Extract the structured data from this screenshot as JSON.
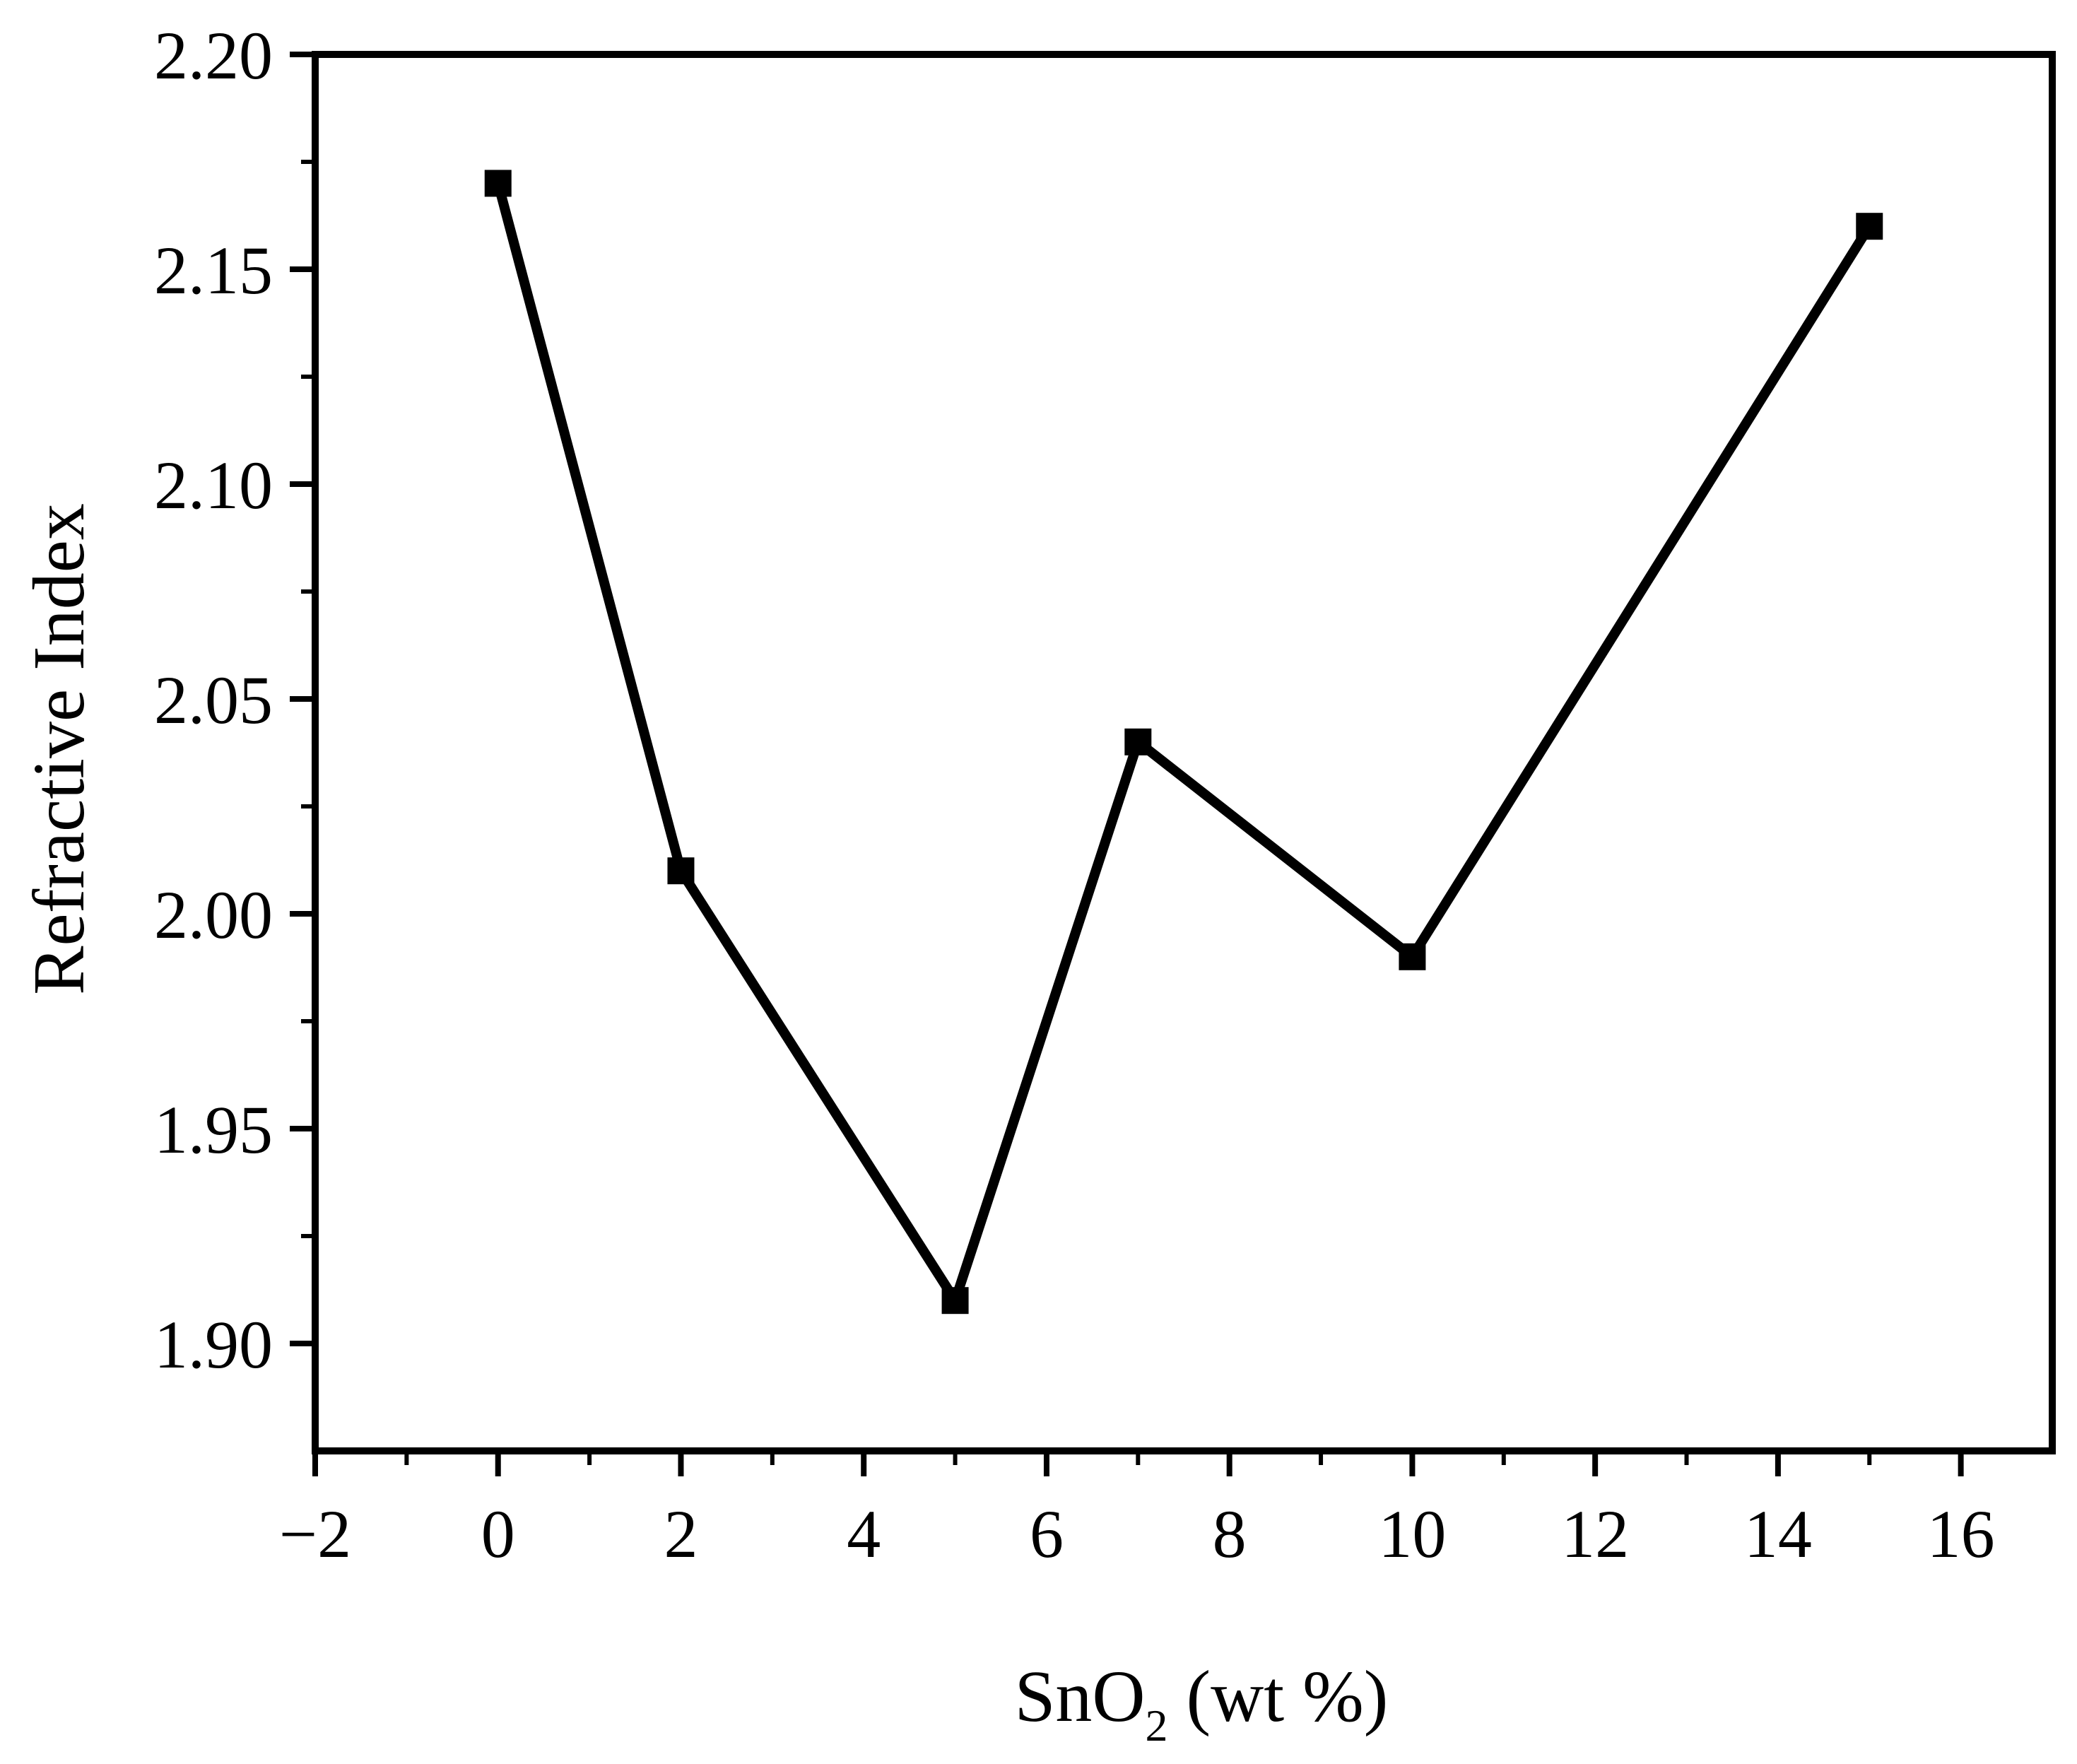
{
  "chart_data": {
    "type": "line",
    "title": "",
    "xlabel": "SnO2 (wt %)",
    "xlabel_parts": {
      "main": "SnO",
      "subscript": "2",
      "rest": " (wt %)"
    },
    "ylabel": "Refractive Index",
    "xlim": [
      -2,
      17
    ],
    "ylim": [
      1.875,
      2.2
    ],
    "x_ticks": [
      -2,
      0,
      2,
      4,
      6,
      8,
      10,
      12,
      14,
      16
    ],
    "x_tick_labels": [
      "−2",
      "0",
      "2",
      "4",
      "6",
      "8",
      "10",
      "12",
      "14",
      "16"
    ],
    "y_ticks": [
      1.9,
      1.95,
      2.0,
      2.05,
      2.1,
      2.15,
      2.2
    ],
    "y_tick_labels": [
      "1.90",
      "1.95",
      "2.00",
      "2.05",
      "2.10",
      "2.15",
      "2.20"
    ],
    "grid": false,
    "series": [
      {
        "x": [
          0,
          2,
          5,
          7,
          10,
          15
        ],
        "y": [
          2.17,
          2.01,
          1.91,
          2.04,
          1.99,
          2.16
        ],
        "marker": "square",
        "color": "#000000"
      }
    ]
  }
}
